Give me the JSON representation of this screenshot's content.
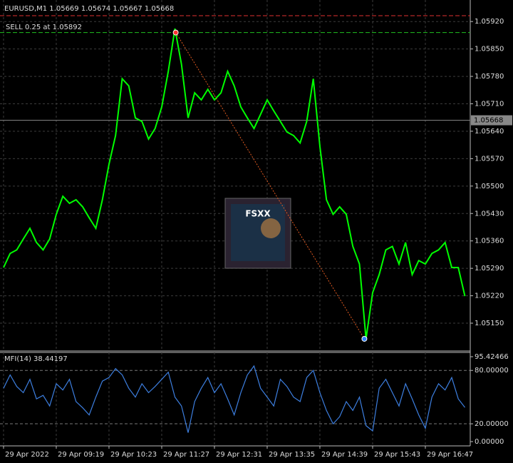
{
  "chart_data": [
    {
      "type": "line",
      "title": "EURUSD,M1 1.05669 1.05674 1.05667 1.05668",
      "color": "#00ff00",
      "x": [
        0,
        8,
        16,
        24,
        32,
        40,
        48,
        56,
        64,
        72,
        80,
        88,
        96,
        104,
        112,
        120,
        128,
        136,
        144,
        152,
        160,
        168,
        176,
        184,
        192,
        200,
        208,
        216,
        224,
        232,
        240,
        248,
        256,
        264,
        272,
        280,
        288,
        296,
        304,
        312,
        320,
        328,
        336,
        344,
        352,
        360,
        368,
        376,
        384,
        392,
        400,
        408,
        416,
        424,
        432,
        440,
        448,
        456,
        464,
        472,
        480,
        488,
        496,
        504,
        512,
        520,
        528,
        536,
        544,
        552,
        560
      ],
      "values": [
        1.05292,
        1.05328,
        1.05337,
        1.05365,
        1.05392,
        1.05356,
        1.05337,
        1.05365,
        1.05428,
        1.05474,
        1.05456,
        1.05465,
        1.05447,
        1.05419,
        1.05392,
        1.05465,
        1.05556,
        1.05629,
        1.05774,
        1.05756,
        1.05674,
        1.05665,
        1.0562,
        1.05647,
        1.05702,
        1.05793,
        1.05902,
        1.05811,
        1.05674,
        1.05738,
        1.0572,
        1.05747,
        1.0572,
        1.05738,
        1.05793,
        1.05756,
        1.05702,
        1.05674,
        1.05647,
        1.05683,
        1.0572,
        1.05692,
        1.05665,
        1.05638,
        1.05629,
        1.0561,
        1.05665,
        1.05774,
        1.05601,
        1.05465,
        1.05428,
        1.05447,
        1.05428,
        1.05346,
        1.05301,
        1.0511,
        1.05228,
        1.05274,
        1.05337,
        1.05346,
        1.05301,
        1.05356,
        1.05274,
        1.0531,
        1.05301,
        1.05328,
        1.05337,
        1.05356,
        1.05292,
        1.05292,
        1.05219
      ],
      "xlim": [
        -4.3,
        566.5
      ],
      "ylim": [
        1.05079,
        1.05975
      ],
      "yticks": [
        {
          "value": 1.0592,
          "label": "1.05920"
        },
        {
          "value": 1.0585,
          "label": "1.05850"
        },
        {
          "value": 1.0578,
          "label": "1.05780"
        },
        {
          "value": 1.0571,
          "label": "1.05710"
        },
        {
          "value": 1.0564,
          "label": "1.05640"
        },
        {
          "value": 1.0557,
          "label": "1.05570"
        },
        {
          "value": 1.055,
          "label": "1.05500"
        },
        {
          "value": 1.0543,
          "label": "1.05430"
        },
        {
          "value": 1.0536,
          "label": "1.05360"
        },
        {
          "value": 1.0529,
          "label": "1.05290"
        },
        {
          "value": 1.0522,
          "label": "1.05220"
        },
        {
          "value": 1.0515,
          "label": "1.05150"
        }
      ],
      "grid": true,
      "bid": 1.05668,
      "stop_level": 1.05935,
      "trade_label": "SELL 0.25 at 1.05892",
      "entry_price": 1.05892,
      "entry_x": 209,
      "exit_price": 1.0511,
      "exit_x": 438,
      "logo": "FSXX"
    },
    {
      "type": "line",
      "title": "MFI(14) 38.44197",
      "color": "#3d7fe0",
      "values": [
        60,
        75,
        62,
        55,
        70,
        48,
        52,
        40,
        65,
        58,
        70,
        45,
        38,
        30,
        50,
        68,
        72,
        82,
        75,
        60,
        50,
        65,
        55,
        62,
        70,
        78,
        50,
        40,
        10,
        45,
        60,
        72,
        55,
        65,
        48,
        30,
        55,
        75,
        85,
        60,
        50,
        40,
        70,
        62,
        50,
        45,
        72,
        80,
        55,
        35,
        20,
        28,
        45,
        35,
        50,
        18,
        12,
        60,
        70,
        55,
        40,
        65,
        48,
        30,
        15,
        50,
        65,
        58,
        72,
        48,
        38.44197
      ],
      "ylim": [
        0,
        95.42466
      ],
      "yticks": [
        {
          "value": 95.42466,
          "label": "95.42466"
        },
        {
          "value": 80,
          "label": "80.00000"
        },
        {
          "value": 20,
          "label": "20.00000"
        },
        {
          "value": 0,
          "label": "0.00000"
        }
      ],
      "levels": [
        80,
        20
      ],
      "xticks": [
        {
          "value": 0,
          "label": "29 Apr 2022"
        },
        {
          "value": 64,
          "label": "29 Apr 09:19"
        },
        {
          "value": 128,
          "label": "29 Apr 10:23"
        },
        {
          "value": 192,
          "label": "29 Apr 11:27"
        },
        {
          "value": 256,
          "label": "29 Apr 12:31"
        },
        {
          "value": 320,
          "label": "29 Apr 13:35"
        },
        {
          "value": 384,
          "label": "29 Apr 14:39"
        },
        {
          "value": 448,
          "label": "29 Apr 15:43"
        },
        {
          "value": 512,
          "label": "29 Apr 16:47"
        }
      ]
    }
  ]
}
